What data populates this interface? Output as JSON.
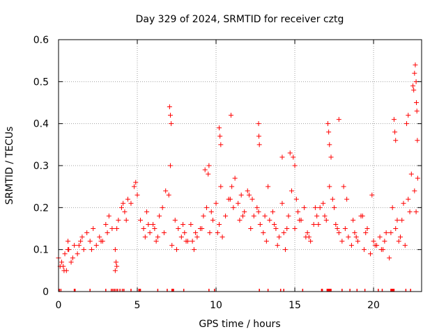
{
  "chart_data": {
    "type": "scatter",
    "title": "Day 329 of 2024, SRMTID for receiver cztg",
    "xlabel": "GPS time / hours",
    "ylabel": "SRMTID / TECUs",
    "xlim": [
      0,
      23.05
    ],
    "ylim": [
      0,
      0.6
    ],
    "xticks": [
      0,
      5,
      10,
      15,
      20
    ],
    "yticks": [
      0,
      0.1,
      0.2,
      0.3,
      0.4,
      0.5,
      0.6
    ],
    "grid": true,
    "marker": "plus",
    "color": "#ff0000",
    "series": [
      {
        "name": "SRMTID",
        "x": [
          0.0,
          0.2,
          0.4,
          0.6,
          0.8,
          1.0,
          1.2,
          1.4,
          1.6,
          1.8,
          2.0,
          2.2,
          2.4,
          2.6,
          2.8,
          3.0,
          3.2,
          3.4,
          3.6,
          3.8,
          4.0,
          4.2,
          4.4,
          4.6,
          4.8,
          5.0,
          5.2,
          5.4,
          5.6,
          5.8,
          6.0,
          6.2,
          6.4,
          6.6,
          6.8,
          7.0,
          7.2,
          7.4,
          7.6,
          7.8,
          8.0,
          8.2,
          8.4,
          8.6,
          8.8,
          9.0,
          9.2,
          9.4,
          9.6,
          9.8,
          10.0,
          10.2,
          10.4,
          10.6,
          10.8,
          11.0,
          11.2,
          11.4,
          11.6,
          11.8,
          12.0,
          12.2,
          12.4,
          12.6,
          12.8,
          13.0,
          13.2,
          13.4,
          13.6,
          13.8,
          14.0,
          14.2,
          14.4,
          14.6,
          14.8,
          15.0,
          15.2,
          15.4,
          15.6,
          15.8,
          16.0,
          16.2,
          16.4,
          16.6,
          16.8,
          17.0,
          17.2,
          17.4,
          17.6,
          17.8,
          18.0,
          18.2,
          18.4,
          18.6,
          18.8,
          19.0,
          19.2,
          19.4,
          19.6,
          19.8,
          20.0,
          20.2,
          20.4,
          20.6,
          20.8,
          21.0,
          21.2,
          21.4,
          21.6,
          21.8,
          22.0,
          22.2,
          22.4,
          22.6,
          22.8,
          0.1,
          0.5,
          0.9,
          1.5,
          2.1,
          2.7,
          3.1,
          3.7,
          4.3,
          4.9,
          5.5,
          6.1,
          6.7,
          7.1,
          7.5,
          8.1,
          8.7,
          9.3,
          9.7,
          10.3,
          10.9,
          11.5,
          12.1,
          12.7,
          13.3,
          13.9,
          14.5,
          15.1,
          15.7,
          16.3,
          16.9,
          17.5,
          18.1,
          18.7,
          19.3,
          19.9,
          20.5,
          21.1,
          21.7,
          22.3,
          22.7,
          7.05,
          7.1,
          7.15,
          9.5,
          9.55,
          10.2,
          10.25,
          10.3,
          10.95,
          12.7,
          12.72,
          12.75,
          14.7,
          14.9,
          15.0,
          17.1,
          17.15,
          17.2,
          17.3,
          17.8,
          21.3,
          21.35,
          21.4,
          22.1,
          22.2,
          22.5,
          22.55,
          22.6,
          22.65,
          22.7,
          22.72,
          22.75,
          22.78,
          3.6,
          3.65,
          3.7,
          14.2,
          0.3,
          0.35,
          0.6,
          0.65,
          1.3,
          4.1,
          5.7,
          6.3,
          7.9,
          8.5,
          9.1,
          10.1,
          11.1,
          11.7,
          12.3,
          13.1,
          13.7,
          14.3,
          15.3,
          15.9,
          16.5,
          17.7,
          18.3,
          18.9,
          19.5,
          20.1,
          20.7,
          21.5,
          21.9
        ],
        "y": [
          0.08,
          0.07,
          0.09,
          0.1,
          0.07,
          0.11,
          0.09,
          0.12,
          0.1,
          0.14,
          0.12,
          0.15,
          0.11,
          0.13,
          0.12,
          0.16,
          0.18,
          0.15,
          0.1,
          0.17,
          0.2,
          0.19,
          0.22,
          0.21,
          0.25,
          0.23,
          0.17,
          0.15,
          0.19,
          0.14,
          0.16,
          0.12,
          0.18,
          0.2,
          0.24,
          0.23,
          0.11,
          0.17,
          0.15,
          0.13,
          0.14,
          0.12,
          0.16,
          0.1,
          0.13,
          0.15,
          0.18,
          0.2,
          0.14,
          0.17,
          0.21,
          0.16,
          0.13,
          0.18,
          0.22,
          0.25,
          0.27,
          0.21,
          0.23,
          0.19,
          0.24,
          0.15,
          0.18,
          0.2,
          0.16,
          0.14,
          0.12,
          0.17,
          0.19,
          0.15,
          0.13,
          0.21,
          0.1,
          0.18,
          0.24,
          0.15,
          0.19,
          0.17,
          0.2,
          0.14,
          0.12,
          0.16,
          0.18,
          0.2,
          0.21,
          0.17,
          0.25,
          0.22,
          0.16,
          0.14,
          0.12,
          0.15,
          0.13,
          0.11,
          0.14,
          0.12,
          0.18,
          0.1,
          0.15,
          0.09,
          0.12,
          0.11,
          0.13,
          0.1,
          0.14,
          0.08,
          0.2,
          0.15,
          0.12,
          0.17,
          0.11,
          0.22,
          0.28,
          0.24,
          0.27,
          0.06,
          0.05,
          0.08,
          0.13,
          0.1,
          0.12,
          0.14,
          0.15,
          0.17,
          0.26,
          0.13,
          0.15,
          0.14,
          0.3,
          0.1,
          0.12,
          0.14,
          0.29,
          0.19,
          0.25,
          0.22,
          0.17,
          0.23,
          0.19,
          0.25,
          0.11,
          0.15,
          0.22,
          0.13,
          0.2,
          0.18,
          0.2,
          0.25,
          0.17,
          0.18,
          0.23,
          0.1,
          0.14,
          0.13,
          0.19,
          0.19,
          0.44,
          0.42,
          0.4,
          0.28,
          0.3,
          0.39,
          0.37,
          0.35,
          0.42,
          0.4,
          0.37,
          0.35,
          0.33,
          0.32,
          0.3,
          0.4,
          0.38,
          0.35,
          0.32,
          0.41,
          0.41,
          0.38,
          0.36,
          0.4,
          0.42,
          0.49,
          0.48,
          0.52,
          0.54,
          0.5,
          0.45,
          0.43,
          0.36,
          0.05,
          0.07,
          0.06,
          0.32,
          0.06,
          0.05,
          0.12,
          0.1,
          0.11,
          0.21,
          0.16,
          0.13,
          0.16,
          0.12,
          0.15,
          0.14,
          0.2,
          0.18,
          0.22,
          0.18,
          0.16,
          0.14,
          0.17,
          0.13,
          0.16,
          0.15,
          0.22,
          0.13,
          0.14,
          0.11,
          0.12,
          0.17,
          0.21
        ]
      }
    ],
    "zero_flags_x": [
      0.05,
      0.15,
      1.0,
      1.05,
      2.0,
      3.0,
      3.35,
      3.45,
      3.55,
      3.65,
      3.75,
      3.9,
      4.05,
      4.15,
      4.6,
      5.1,
      5.15,
      5.2,
      6.3,
      6.9,
      7.2,
      7.25,
      7.3,
      7.95,
      9.55,
      9.9,
      12.75,
      13.3,
      14.1,
      14.3,
      15.5,
      16.7,
      16.75,
      17.05,
      17.1,
      17.15,
      17.2,
      17.25,
      17.3,
      18.0,
      18.5,
      18.95,
      19.45,
      20.3,
      20.55,
      21.1,
      21.15,
      21.2,
      21.25,
      21.3,
      22.05,
      22.35
    ]
  }
}
